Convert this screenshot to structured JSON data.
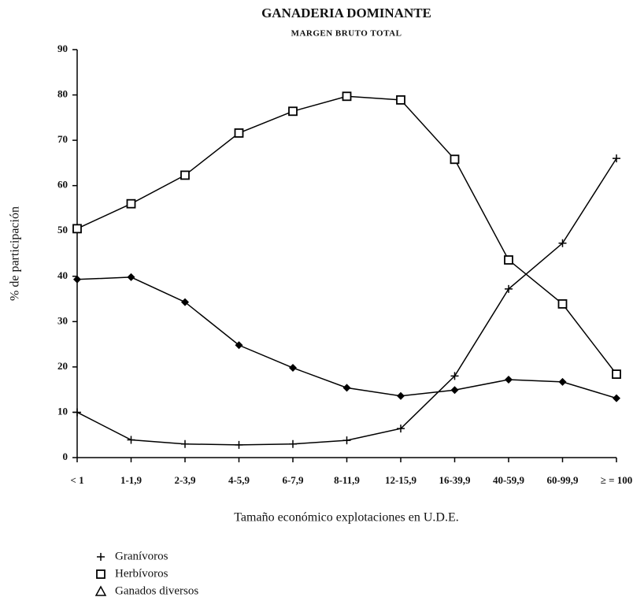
{
  "chart_data": {
    "type": "line",
    "title": "GANADERIA DOMINANTE",
    "subtitle": "MARGEN BRUTO TOTAL",
    "x_label": "Tamaño económico explotaciones en U.D.E.",
    "y_label": "% de participación",
    "categories": [
      "< 1",
      "1-1,9",
      "2-3,9",
      "4-5,9",
      "6-7,9",
      "8-11,9",
      "12-15,9",
      "16-39,9",
      "40-59,9",
      "60-99,9",
      "≥ = 100"
    ],
    "ylim": [
      0,
      90
    ],
    "yticks": [
      0,
      10,
      20,
      30,
      40,
      50,
      60,
      70,
      80,
      90
    ],
    "series": [
      {
        "name": "Granívoros",
        "color": "#000000",
        "marker": "plus",
        "legend_marker": "plus",
        "values": [
          10,
          3.9,
          3,
          2.8,
          3,
          3.8,
          6.4,
          18,
          37.2,
          47.3,
          66
        ]
      },
      {
        "name": "Herbívoros",
        "color": "#000000",
        "marker": "square",
        "legend_marker": "square",
        "values": [
          50.5,
          56,
          62.3,
          71.6,
          76.4,
          79.7,
          78.9,
          65.8,
          43.6,
          33.9,
          18.4
        ]
      },
      {
        "name": "Ganados diversos",
        "color": "#000000",
        "marker": "diamond",
        "legend_marker": "triangle",
        "values": [
          39.3,
          39.8,
          34.3,
          24.8,
          19.8,
          15.4,
          13.6,
          14.9,
          17.2,
          16.7,
          13.1
        ]
      }
    ]
  }
}
